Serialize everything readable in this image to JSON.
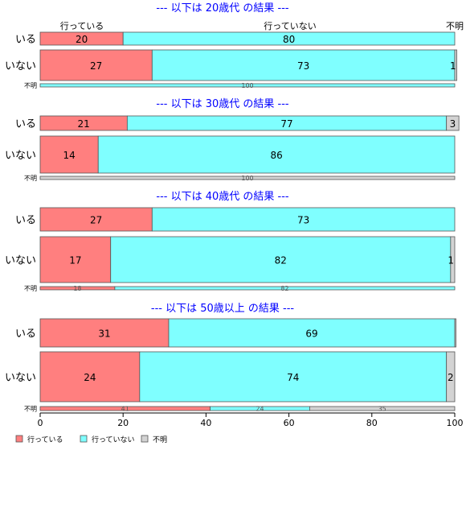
{
  "chart_data": {
    "type": "bar",
    "orientation": "horizontal",
    "stacked": true,
    "xlim": [
      0,
      100
    ],
    "xticks": [
      "0",
      "20",
      "40",
      "60",
      "80",
      "100"
    ],
    "column_headers": [
      "行っている",
      "行っていない",
      "不明"
    ],
    "legend": {
      "placement": "bottom-left",
      "entries": [
        "行っている",
        "行っていない",
        "不明"
      ]
    },
    "colors": {
      "行っている": "#ff7f7f",
      "行っていない": "#7fffff",
      "不明": "#d3d3d3"
    },
    "panels": [
      {
        "title": "--- 以下は 20歳代 の結果 ---",
        "rows": [
          {
            "category": "いる",
            "values": [
              20,
              80,
              0
            ],
            "labels": [
              "20",
              "80",
              ""
            ]
          },
          {
            "category": "いない",
            "values": [
              27,
              73,
              0.5
            ],
            "labels": [
              "27",
              "73",
              "1"
            ]
          },
          {
            "category": "不明",
            "values": [
              0,
              100,
              0
            ],
            "labels": [
              "",
              "100",
              ""
            ]
          }
        ]
      },
      {
        "title": "--- 以下は 30歳代 の結果 ---",
        "rows": [
          {
            "category": "いる",
            "values": [
              21,
              77,
              3
            ],
            "labels": [
              "21",
              "77",
              "3"
            ]
          },
          {
            "category": "いない",
            "values": [
              14,
              86,
              0
            ],
            "labels": [
              "14",
              "86",
              ""
            ]
          },
          {
            "category": "不明",
            "values": [
              0,
              0,
              100
            ],
            "labels": [
              "",
              "",
              "100"
            ]
          }
        ]
      },
      {
        "title": "--- 以下は 40歳代 の結果 ---",
        "rows": [
          {
            "category": "いる",
            "values": [
              27,
              73,
              0
            ],
            "labels": [
              "27",
              "73",
              ""
            ]
          },
          {
            "category": "いない",
            "values": [
              17,
              82,
              1
            ],
            "labels": [
              "17",
              "82",
              "1"
            ]
          },
          {
            "category": "不明",
            "values": [
              18,
              82,
              0
            ],
            "labels": [
              "18",
              "82",
              ""
            ]
          }
        ]
      },
      {
        "title": "--- 以下は 50歳以上 の結果 ---",
        "rows": [
          {
            "category": "いる",
            "values": [
              31,
              69,
              0.3
            ],
            "labels": [
              "31",
              "69",
              ""
            ]
          },
          {
            "category": "いない",
            "values": [
              24,
              74,
              2
            ],
            "labels": [
              "24",
              "74",
              "2"
            ]
          },
          {
            "category": "不明",
            "values": [
              41,
              24,
              35
            ],
            "labels": [
              "41",
              "24",
              "35"
            ]
          }
        ]
      }
    ]
  }
}
